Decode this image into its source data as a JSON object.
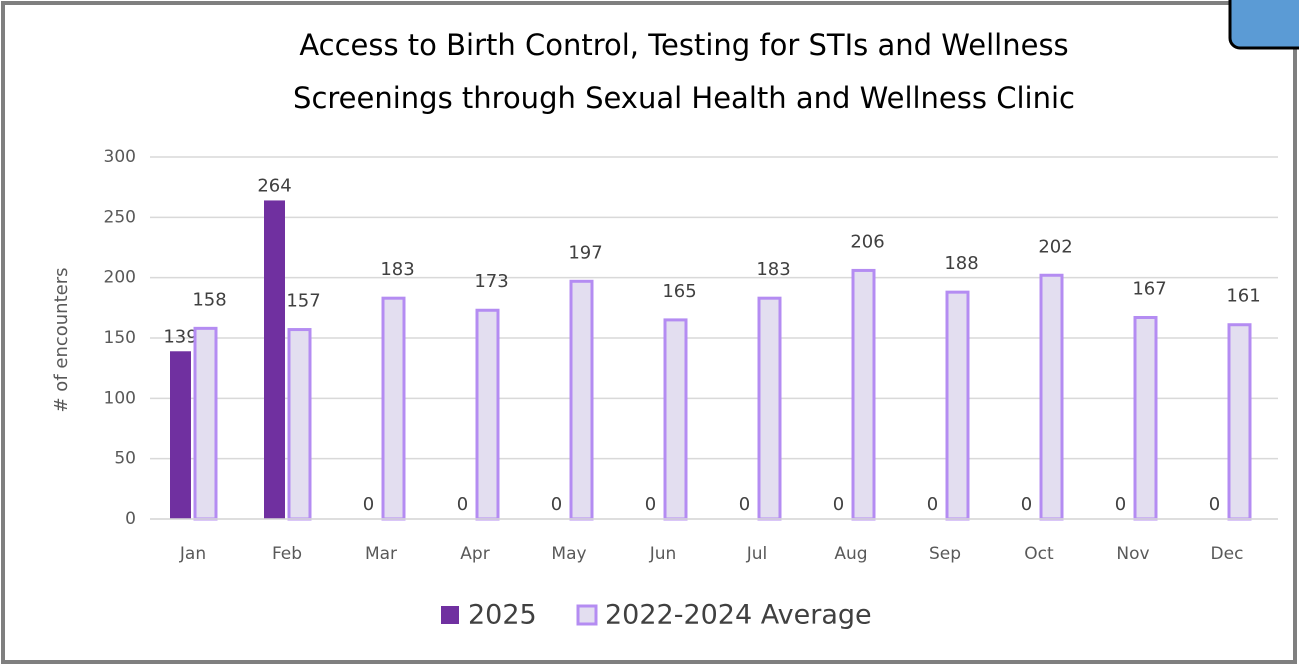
{
  "chart_data": {
    "type": "bar",
    "title": [
      "Access to Birth Control, Testing for STIs and Wellness",
      "Screenings through Sexual Health and Wellness Clinic"
    ],
    "y_label": "# of encounters",
    "categories": [
      "Jan",
      "Feb",
      "Mar",
      "Apr",
      "May",
      "Jun",
      "Jul",
      "Aug",
      "Sep",
      "Oct",
      "Nov",
      "Dec"
    ],
    "series": [
      {
        "name": "2025",
        "color": "#7030a0",
        "values": [
          139,
          264,
          0,
          0,
          0,
          0,
          0,
          0,
          0,
          0,
          0,
          0
        ]
      },
      {
        "name": "2022-2024 Average",
        "color": "#e3def0",
        "edge_color": "#b48cf2",
        "values": [
          158,
          157,
          183,
          173,
          197,
          165,
          183,
          206,
          188,
          202,
          167,
          161
        ]
      }
    ],
    "ylim": [
      0,
      300
    ],
    "yticks": [
      0,
      50,
      100,
      150,
      200,
      250,
      300
    ],
    "grid": true,
    "legend": "bottom"
  }
}
